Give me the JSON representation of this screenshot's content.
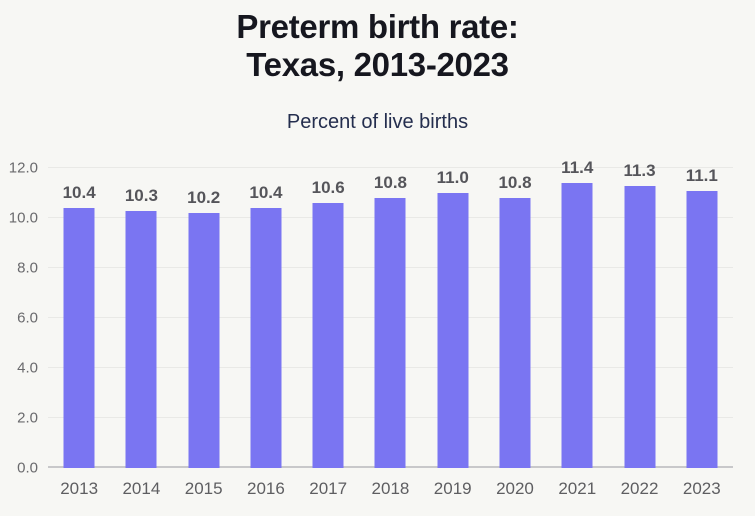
{
  "page": {
    "background": "#f7f7f4"
  },
  "header": {
    "title_line1": "Preterm birth rate:",
    "title_line2": "Texas, 2013-2023",
    "subtitle": "Percent of live births"
  },
  "chart_data": {
    "type": "bar",
    "title": "Preterm birth rate: Texas, 2013-2023",
    "subtitle": "Percent of live births",
    "categories": [
      "2013",
      "2014",
      "2015",
      "2016",
      "2017",
      "2018",
      "2019",
      "2020",
      "2021",
      "2022",
      "2023"
    ],
    "values": [
      10.4,
      10.3,
      10.2,
      10.4,
      10.6,
      10.8,
      11.0,
      10.8,
      11.4,
      11.3,
      11.1
    ],
    "value_labels": [
      "10.4",
      "10.3",
      "10.2",
      "10.4",
      "10.6",
      "10.8",
      "11.0",
      "10.8",
      "11.4",
      "11.3",
      "11.1"
    ],
    "xlabel": "",
    "ylabel": "",
    "ylim": [
      0,
      12
    ],
    "yticks": [
      0,
      2,
      4,
      6,
      8,
      10,
      12
    ],
    "ytick_labels": [
      "0.0",
      "2.0",
      "4.0",
      "6.0",
      "8.0",
      "10.0",
      "12.0"
    ],
    "grid": true,
    "legend": "none",
    "colors": {
      "bar": "#7a75f2",
      "title": "#16171f",
      "subtitle": "#242e4e",
      "value_label": "#55555a",
      "y_axis_label": "#6a6a6d",
      "x_axis_label": "#5e5e61",
      "gridline": "#e9e9e6",
      "baseline": "#c8c8ca",
      "background": "#f7f7f4"
    }
  }
}
